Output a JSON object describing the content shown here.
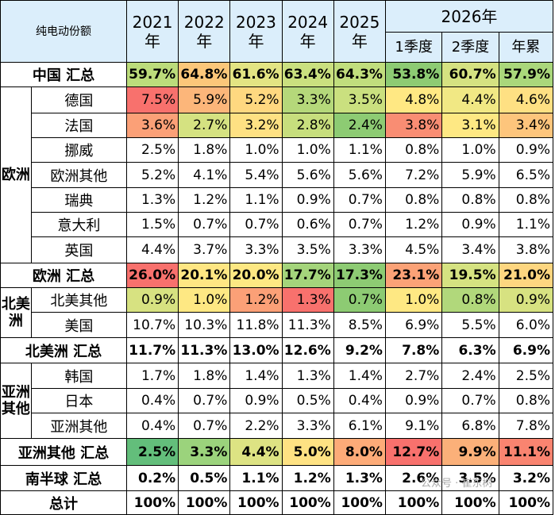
{
  "header": {
    "title": "纯电动份额",
    "years": [
      "2021\n年",
      "2022\n年",
      "2023\n年",
      "2024\n年",
      "2025\n年"
    ],
    "year2026": "2026年",
    "sub": [
      "1季度",
      "2季度",
      "年累"
    ]
  },
  "rows": [
    {
      "label": "中国 汇总",
      "kind": "sum",
      "values": [
        "59.7%",
        "64.8%",
        "61.6%",
        "63.4%",
        "64.3%",
        "53.8%",
        "60.7%",
        "57.9%"
      ],
      "colors": [
        "#bcdc7b",
        "#fcc77a",
        "#e3e483",
        "#cae07f",
        "#c1de7d",
        "#8dcb73",
        "#d5e281",
        "#aad77b"
      ]
    },
    {
      "label": "德国",
      "kind": "country",
      "values": [
        "7.5%",
        "5.9%",
        "5.2%",
        "3.3%",
        "3.5%",
        "4.8%",
        "4.4%",
        "4.6%"
      ],
      "colors": [
        "#f8716d",
        "#fcb67a",
        "#fed880",
        "#b5d87a",
        "#cae07f",
        "#ffe883",
        "#f1e884",
        "#fee083"
      ]
    },
    {
      "label": "法国",
      "kind": "country",
      "values": [
        "3.6%",
        "2.7%",
        "3.2%",
        "2.8%",
        "2.4%",
        "3.8%",
        "3.1%",
        "3.4%"
      ],
      "colors": [
        "#fba077",
        "#d5e281",
        "#fee183",
        "#c7de7d",
        "#8dcb73",
        "#f98d73",
        "#fee883",
        "#fdc57c"
      ]
    },
    {
      "label": "挪威",
      "kind": "country",
      "values": [
        "2.5%",
        "1.8%",
        "1.0%",
        "1.0%",
        "1.1%",
        "0.8%",
        "1.0%",
        "0.9%"
      ]
    },
    {
      "label": "欧洲其他",
      "kind": "country",
      "values": [
        "5.2%",
        "4.1%",
        "5.4%",
        "5.6%",
        "5.6%",
        "7.2%",
        "5.9%",
        "6.5%"
      ]
    },
    {
      "label": "瑞典",
      "kind": "country",
      "values": [
        "1.3%",
        "1.2%",
        "1.1%",
        "0.9%",
        "0.7%",
        "0.8%",
        "0.8%",
        "0.8%"
      ]
    },
    {
      "label": "意大利",
      "kind": "country",
      "values": [
        "1.5%",
        "0.7%",
        "0.7%",
        "0.6%",
        "0.7%",
        "1.2%",
        "0.9%",
        "1.1%"
      ]
    },
    {
      "label": "英国",
      "kind": "country",
      "values": [
        "4.4%",
        "3.7%",
        "3.3%",
        "3.5%",
        "3.3%",
        "4.5%",
        "3.4%",
        "3.8%"
      ]
    },
    {
      "label": "欧洲 汇总",
      "kind": "sum",
      "values": [
        "26.0%",
        "20.1%",
        "20.0%",
        "17.7%",
        "17.3%",
        "23.1%",
        "19.5%",
        "21.0%"
      ],
      "colors": [
        "#f8716d",
        "#fee683",
        "#fde883",
        "#a4d47b",
        "#8dcb73",
        "#fba277",
        "#d5e281",
        "#fdd680"
      ]
    },
    {
      "label": "北美其他",
      "kind": "country",
      "values": [
        "0.9%",
        "1.0%",
        "1.2%",
        "1.3%",
        "0.7%",
        "1.0%",
        "0.8%",
        "0.9%"
      ],
      "colors": [
        "#d7e281",
        "#fee883",
        "#fba077",
        "#f8716d",
        "#8dcb73",
        "#fee883",
        "#b1d87b",
        "#d7e281"
      ]
    },
    {
      "label": "美国",
      "kind": "country",
      "values": [
        "10.7%",
        "10.3%",
        "11.8%",
        "11.3%",
        "8.5%",
        "6.9%",
        "5.5%",
        "6.0%"
      ]
    },
    {
      "label": "北美洲 汇总",
      "kind": "sumplain",
      "values": [
        "11.7%",
        "11.3%",
        "13.0%",
        "12.6%",
        "9.2%",
        "7.8%",
        "6.3%",
        "6.9%"
      ]
    },
    {
      "label": "韩国",
      "kind": "country",
      "values": [
        "1.7%",
        "1.8%",
        "1.4%",
        "1.3%",
        "1.4%",
        "2.7%",
        "2.4%",
        "2.5%"
      ]
    },
    {
      "label": "日本",
      "kind": "country",
      "values": [
        "0.4%",
        "0.7%",
        "0.9%",
        "0.5%",
        "0.4%",
        "0.9%",
        "0.7%",
        "0.8%"
      ]
    },
    {
      "label": "亚洲其他",
      "kind": "country",
      "values": [
        "0.4%",
        "0.7%",
        "2.2%",
        "3.3%",
        "6.1%",
        "9.1%",
        "6.8%",
        "7.8%"
      ]
    },
    {
      "label": "亚洲其他 汇总",
      "kind": "sum",
      "values": [
        "2.5%",
        "3.3%",
        "4.4%",
        "5.0%",
        "8.0%",
        "12.7%",
        "9.9%",
        "11.1%"
      ],
      "colors": [
        "#63be7b",
        "#9bd37c",
        "#dde383",
        "#fee283",
        "#fdab78",
        "#f8716d",
        "#fbb079",
        "#f98470"
      ]
    },
    {
      "label": "南半球 汇总",
      "kind": "sumplain",
      "values": [
        "0.2%",
        "0.5%",
        "1.1%",
        "1.2%",
        "1.3%",
        "2.6%",
        "3.5%",
        "3.2%"
      ]
    },
    {
      "label": "总计",
      "kind": "total",
      "values": [
        "100%",
        "100%",
        "100%",
        "100%",
        "100%",
        "100%",
        "100%",
        "100%"
      ]
    }
  ],
  "regions": {
    "europe": "欧洲",
    "northamerica": "北美洲",
    "asia": "亚洲其他"
  },
  "watermark": "公众号 · 崔东树"
}
